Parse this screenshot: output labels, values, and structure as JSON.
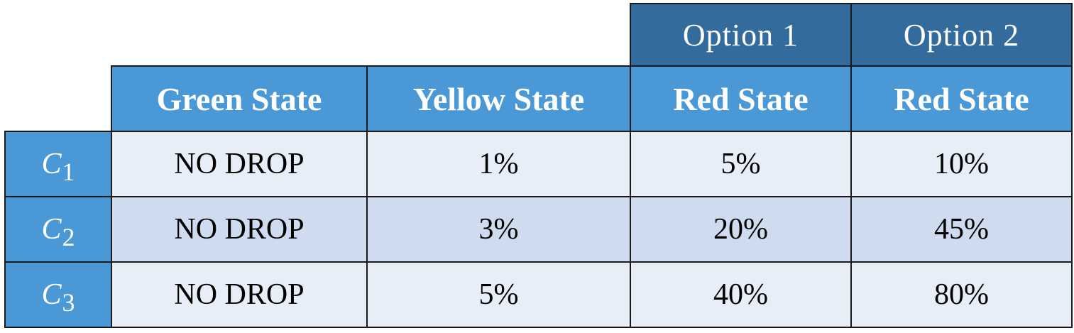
{
  "options": [
    "Option 1",
    "Option 2"
  ],
  "states": [
    "Green State",
    "Yellow State",
    "Red State",
    "Red State"
  ],
  "rows": [
    {
      "label": "C",
      "sub": "1",
      "values": [
        "NO DROP",
        "1%",
        "5%",
        "10%"
      ]
    },
    {
      "label": "C",
      "sub": "2",
      "values": [
        "NO DROP",
        "3%",
        "20%",
        "45%"
      ]
    },
    {
      "label": "C",
      "sub": "3",
      "values": [
        "NO DROP",
        "5%",
        "40%",
        "80%"
      ]
    }
  ],
  "colors": {
    "option_header": "#336b9c",
    "state_header": "#4a98d6",
    "row_light": "#e8eef7",
    "row_dark": "#cfdcef"
  }
}
